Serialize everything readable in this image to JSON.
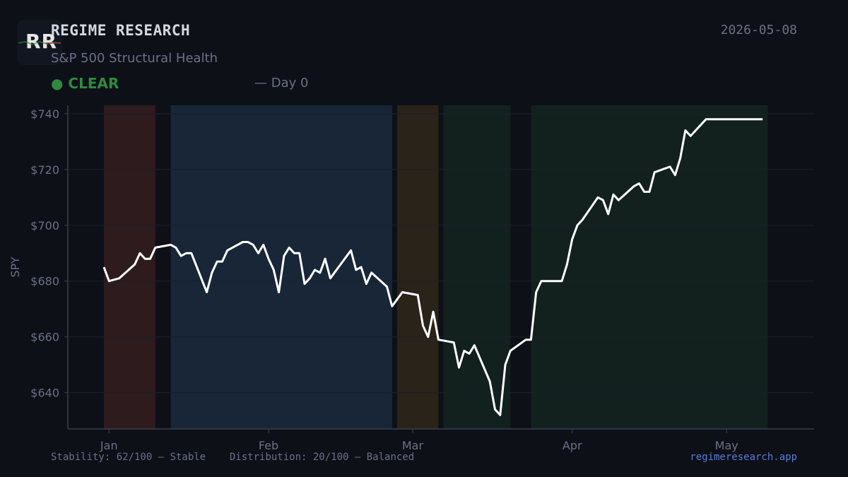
{
  "header": {
    "logo_text": "RR",
    "brand": "REGIME RESEARCH",
    "subtitle": "S&P 500 Structural Health",
    "date": "2026-05-08",
    "status": "● CLEAR",
    "day": "— Day 0"
  },
  "footer": {
    "stability": "Stability: 62/100 — Stable",
    "distribution": "Distribution: 20/100 — Balanced",
    "site": "regimeresearch.app"
  },
  "colors": {
    "background": "#0d1017",
    "line": "#ffffff",
    "status_clear": "#2e8b3e",
    "link": "#5a7bd8",
    "regime_red": "#2d1b1e",
    "regime_blue": "#182638",
    "regime_brown": "#2a2319",
    "regime_green": "#12211e"
  },
  "chart_data": {
    "type": "line",
    "ylabel": "SPY",
    "ylim": [
      627,
      743
    ],
    "yticks": [
      640,
      660,
      680,
      700,
      720,
      740
    ],
    "ytick_labels": [
      "$640",
      "$660",
      "$680",
      "$700",
      "$720",
      "$740"
    ],
    "xlim": [
      "2025-12-24",
      "2026-05-18"
    ],
    "xticks": [
      "2026-01-01",
      "2026-02-01",
      "2026-03-01",
      "2026-04-01",
      "2026-05-01"
    ],
    "xtick_labels": [
      "Jan",
      "Feb",
      "Mar",
      "Apr",
      "May"
    ],
    "grid": true,
    "regimes": [
      {
        "start": "2025-12-31",
        "end": "2026-01-10",
        "color": "#2d1b1e"
      },
      {
        "start": "2026-01-13",
        "end": "2026-02-25",
        "color": "#182638"
      },
      {
        "start": "2026-02-26",
        "end": "2026-03-06",
        "color": "#2a2319"
      },
      {
        "start": "2026-03-07",
        "end": "2026-03-20",
        "color": "#12211e"
      },
      {
        "start": "2026-03-24",
        "end": "2026-05-09",
        "color": "#12211e"
      }
    ],
    "series": [
      {
        "x": [
          "2025-12-31",
          "2026-01-01",
          "2026-01-03",
          "2026-01-06",
          "2026-01-07",
          "2026-01-08",
          "2026-01-09",
          "2026-01-10",
          "2026-01-13",
          "2026-01-14",
          "2026-01-15",
          "2026-01-16",
          "2026-01-17",
          "2026-01-20",
          "2026-01-21",
          "2026-01-22",
          "2026-01-23",
          "2026-01-24",
          "2026-01-27",
          "2026-01-28",
          "2026-01-29",
          "2026-01-30",
          "2026-01-31",
          "2026-02-01",
          "2026-02-02",
          "2026-02-03",
          "2026-02-04",
          "2026-02-05",
          "2026-02-06",
          "2026-02-07",
          "2026-02-08",
          "2026-02-09",
          "2026-02-10",
          "2026-02-11",
          "2026-02-12",
          "2026-02-13",
          "2026-02-17",
          "2026-02-18",
          "2026-02-19",
          "2026-02-20",
          "2026-02-21",
          "2026-02-24",
          "2026-02-25",
          "2026-02-27",
          "2026-03-02",
          "2026-03-03",
          "2026-03-04",
          "2026-03-05",
          "2026-03-06",
          "2026-03-09",
          "2026-03-10",
          "2026-03-11",
          "2026-03-12",
          "2026-03-13",
          "2026-03-16",
          "2026-03-17",
          "2026-03-18",
          "2026-03-19",
          "2026-03-20",
          "2026-03-23",
          "2026-03-24",
          "2026-03-25",
          "2026-03-26",
          "2026-03-30",
          "2026-03-31",
          "2026-04-01",
          "2026-04-02",
          "2026-04-03",
          "2026-04-06",
          "2026-04-07",
          "2026-04-08",
          "2026-04-09",
          "2026-04-10",
          "2026-04-13",
          "2026-04-14",
          "2026-04-15",
          "2026-04-16",
          "2026-04-17",
          "2026-04-20",
          "2026-04-21",
          "2026-04-22",
          "2026-04-23",
          "2026-04-24",
          "2026-04-27",
          "2026-04-28",
          "2026-04-29",
          "2026-04-30",
          "2026-05-01",
          "2026-05-04",
          "2026-05-05",
          "2026-05-06",
          "2026-05-07",
          "2026-05-08"
        ],
        "values": [
          685,
          680,
          681,
          686,
          690,
          688,
          688,
          692,
          693,
          692,
          689,
          690,
          690,
          676,
          683,
          687,
          687,
          691,
          694,
          694,
          693,
          690,
          693,
          688,
          684,
          676,
          689,
          692,
          690,
          690,
          679,
          681,
          684,
          683,
          688,
          681,
          691,
          684,
          685,
          679,
          683,
          678,
          671,
          676,
          675,
          664,
          660,
          669,
          659,
          658,
          649,
          655,
          654,
          657,
          644,
          634,
          632,
          650,
          655,
          659,
          659,
          676,
          680,
          680,
          686,
          695,
          700,
          702,
          710,
          709,
          704,
          711,
          709,
          714,
          715,
          712,
          712,
          719,
          721,
          718,
          724,
          734,
          732,
          738,
          738,
          738,
          738,
          738,
          738,
          738,
          738,
          738,
          738
        ]
      }
    ]
  }
}
